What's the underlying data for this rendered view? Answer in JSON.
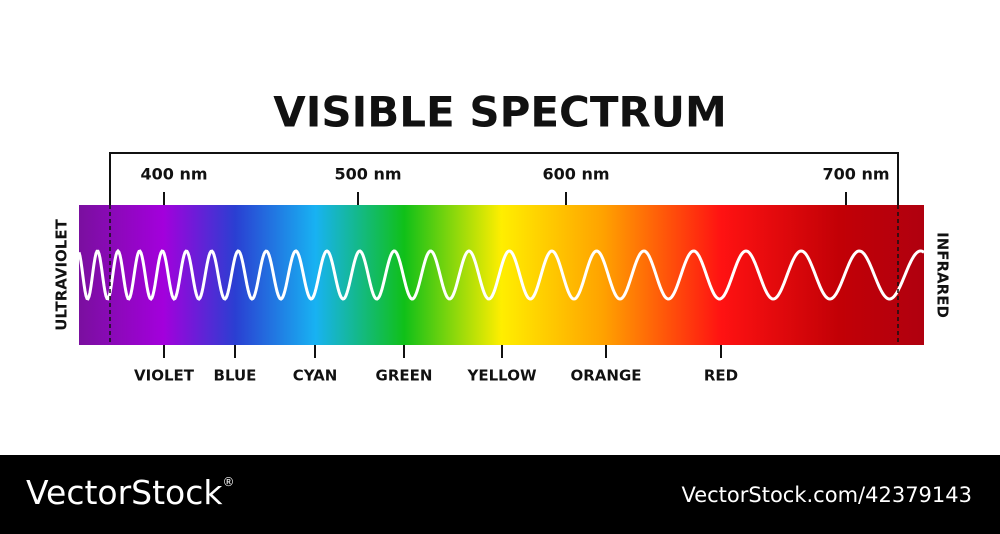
{
  "title": "VISIBLE SPECTRUM",
  "scale_labels": [
    "400 nm",
    "500 nm",
    "600 nm",
    "700 nm"
  ],
  "color_labels": [
    "VIOLET",
    "BLUE",
    "CYAN",
    "GREEN",
    "YELLOW",
    "ORANGE",
    "RED"
  ],
  "left_label": "ULTRAVIOLET",
  "right_label": "INFRARED",
  "footer": {
    "brand": "VectorStock",
    "brand_mark": "®",
    "id": "VectorStock.com/42379143"
  }
}
